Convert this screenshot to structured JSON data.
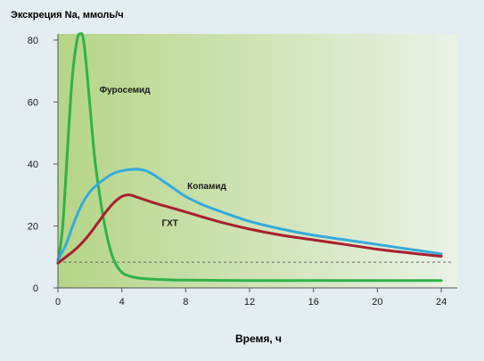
{
  "chart_data": {
    "type": "line",
    "title": "",
    "ylabel": "Экскреция Na, ммоль/ч",
    "xlabel": "Время, ч",
    "xlim": [
      0,
      25
    ],
    "ylim": [
      0,
      82
    ],
    "xticks": [
      0,
      4,
      8,
      12,
      16,
      20,
      24
    ],
    "yticks": [
      0,
      20,
      40,
      60,
      80
    ],
    "grid": false,
    "legend": "inline labels",
    "baseline": {
      "y": 8.3,
      "style": "dashed",
      "color": "#666666"
    },
    "series": [
      {
        "name": "Фуросемид",
        "color": "#2fb24a",
        "x": [
          0,
          0.3,
          0.6,
          0.9,
          1.2,
          1.4,
          1.6,
          1.9,
          2.3,
          2.7,
          3.1,
          3.5,
          4,
          4.5,
          5,
          6,
          7,
          8,
          12,
          16,
          20,
          24
        ],
        "y": [
          8,
          20,
          45,
          68,
          80,
          82,
          80,
          65,
          42,
          27,
          16,
          9,
          5,
          3.8,
          3.2,
          2.8,
          2.6,
          2.5,
          2.4,
          2.4,
          2.4,
          2.4
        ]
      },
      {
        "name": "Копамид",
        "color": "#36aadc",
        "x": [
          0,
          0.5,
          1,
          1.5,
          2,
          2.5,
          3,
          3.5,
          4,
          4.5,
          5,
          5.5,
          6,
          7,
          8,
          9,
          10,
          12,
          14,
          16,
          18,
          20,
          22,
          24
        ],
        "y": [
          9,
          14,
          21,
          27,
          31,
          33.5,
          35.5,
          37,
          37.8,
          38.2,
          38.3,
          37.8,
          36.5,
          33,
          29.5,
          27,
          25,
          21.5,
          19,
          17,
          15.5,
          14,
          12.5,
          11
        ]
      },
      {
        "name": "ГХТ",
        "color": "#a8202e",
        "x": [
          0,
          0.5,
          1,
          1.5,
          2,
          2.5,
          3,
          3.5,
          4,
          4.5,
          5,
          6,
          7,
          8,
          10,
          12,
          14,
          16,
          18,
          20,
          22,
          24
        ],
        "y": [
          8,
          10,
          12,
          14.5,
          17.5,
          21,
          24.5,
          27.5,
          29.5,
          30,
          29.2,
          27.5,
          26,
          24.5,
          21.5,
          19,
          17,
          15.5,
          14,
          12.5,
          11.3,
          10.2
        ]
      }
    ],
    "annotations": [
      {
        "text": "Фуросемид",
        "series": "Фуросемид",
        "x": 2.6,
        "y": 63
      },
      {
        "text": "Копамид",
        "series": "Копамид",
        "x": 8.1,
        "y": 32
      },
      {
        "text": "ГХТ",
        "series": "ГХТ",
        "x": 6.5,
        "y": 20
      }
    ]
  },
  "colors": {
    "page_background": "#e4edf2",
    "plot_gradient_left": "#b5d587",
    "plot_gradient_right": "#eaf2e6",
    "axis": "#555555",
    "text": "#1a1a1a"
  }
}
